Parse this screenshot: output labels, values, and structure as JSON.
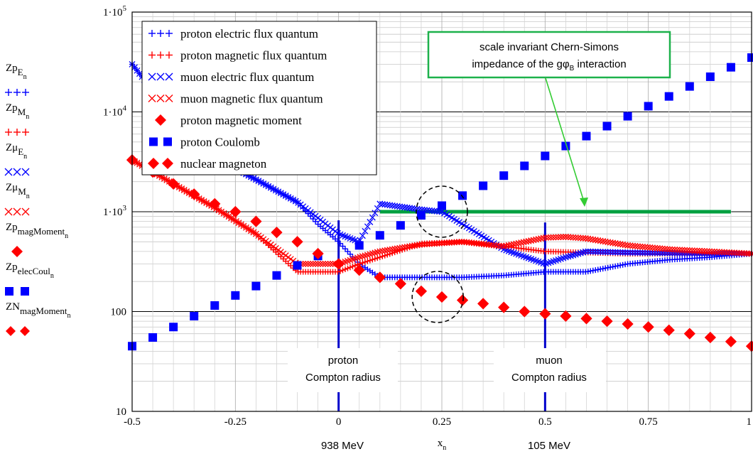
{
  "chart_data": {
    "type": "scatter",
    "x_axis": {
      "range": [
        -0.5,
        1
      ],
      "ticks": [
        {
          "value": -0.5,
          "label": "-0.5"
        },
        {
          "value": -0.25,
          "label": "-0.25"
        },
        {
          "value": 0,
          "label": "0"
        },
        {
          "value": 0.25,
          "label": "0.25"
        },
        {
          "value": 0.5,
          "label": "0.5"
        },
        {
          "value": 0.75,
          "label": "0.75"
        },
        {
          "value": 1,
          "label": "1"
        }
      ],
      "label_main": "x",
      "label_sub": "n"
    },
    "y_axis": {
      "scale": "log",
      "range": [
        10,
        100000
      ],
      "ticks": [
        {
          "value": 10,
          "main": "10",
          "sup": ""
        },
        {
          "value": 100,
          "main": "100",
          "sup": ""
        },
        {
          "value": 1000,
          "main": "1·10",
          "sup": "3"
        },
        {
          "value": 10000,
          "main": "1·10",
          "sup": "4"
        },
        {
          "value": 100000,
          "main": "1·10",
          "sup": "5"
        }
      ]
    },
    "grid": true,
    "legend_position": "top-left",
    "series": [
      {
        "name": "proton electric flux quantum",
        "marker": "+",
        "color": "#0000ff",
        "varname": "Zp",
        "sub": "E",
        "subsub": "n",
        "x": [
          -0.5,
          -0.4,
          -0.3,
          -0.2,
          -0.1,
          -0.05,
          0,
          0.05,
          0.1,
          0.2,
          0.3,
          0.4,
          0.5,
          0.6,
          0.7,
          0.8,
          0.9,
          1.0
        ],
        "y": [
          30000,
          9000,
          3500,
          2100,
          1250,
          750,
          500,
          300,
          220,
          220,
          220,
          230,
          250,
          250,
          300,
          330,
          350,
          380
        ]
      },
      {
        "name": "proton magnetic flux quantum",
        "marker": "+",
        "color": "#ff0000",
        "varname": "Zp",
        "sub": "M",
        "subsub": "n",
        "x": [
          -0.5,
          -0.4,
          -0.3,
          -0.2,
          -0.1,
          0,
          0.05,
          0.1,
          0.2,
          0.3,
          0.4,
          0.5,
          0.6,
          0.7,
          0.8,
          0.9,
          1.0
        ],
        "y": [
          3300,
          1900,
          1100,
          600,
          250,
          250,
          300,
          350,
          480,
          500,
          450,
          400,
          390,
          380,
          380,
          380,
          380
        ]
      },
      {
        "name": "muon electric flux quantum",
        "marker": "x",
        "color": "#0000ff",
        "varname": "Zμ",
        "sub": "E",
        "subsub": "n",
        "x": [
          -0.5,
          -0.4,
          -0.3,
          -0.2,
          -0.1,
          0,
          0.05,
          0.1,
          0.2,
          0.25,
          0.3,
          0.4,
          0.5,
          0.55,
          0.6,
          0.7,
          0.8,
          0.9,
          1.0
        ],
        "y": [
          30000,
          9000,
          3500,
          2100,
          1250,
          600,
          500,
          1200,
          1050,
          1000,
          750,
          420,
          300,
          350,
          400,
          390,
          385,
          380,
          380
        ]
      },
      {
        "name": "muon magnetic flux quantum",
        "marker": "x",
        "color": "#ff0000",
        "varname": "Zμ",
        "sub": "M",
        "subsub": "n",
        "x": [
          -0.5,
          -0.4,
          -0.3,
          -0.2,
          -0.1,
          0,
          0.05,
          0.1,
          0.2,
          0.3,
          0.4,
          0.5,
          0.55,
          0.6,
          0.7,
          0.8,
          0.9,
          1.0
        ],
        "y": [
          3300,
          1900,
          1100,
          600,
          300,
          300,
          350,
          400,
          470,
          500,
          450,
          550,
          560,
          540,
          460,
          420,
          400,
          380
        ]
      },
      {
        "name": "proton magnetic moment",
        "marker": "diamond",
        "color": "#ff0000",
        "varname": "Zp",
        "sub": "magMoment",
        "subsub": "n",
        "x": [
          -0.5,
          -0.45,
          -0.4,
          -0.35,
          -0.3,
          -0.25,
          -0.2,
          -0.15,
          -0.1,
          -0.05,
          0,
          0.05,
          0.1,
          0.15,
          0.2,
          0.25,
          0.3,
          0.35,
          0.4,
          0.45,
          0.5,
          0.55,
          0.6,
          0.65,
          0.7,
          0.75,
          0.8,
          0.85,
          0.9,
          0.95,
          1.0
        ],
        "y": [
          3300,
          2500,
          1900,
          1500,
          1200,
          1000,
          800,
          620,
          500,
          380,
          300,
          260,
          220,
          190,
          160,
          140,
          130,
          120,
          110,
          100,
          95,
          90,
          85,
          80,
          75,
          70,
          65,
          60,
          55,
          50,
          45
        ]
      },
      {
        "name": "proton Coulomb",
        "marker": "square",
        "color": "#0000ff",
        "varname": "Zp",
        "sub": "elecCoul",
        "subsub": "n",
        "x": [
          -0.5,
          -0.45,
          -0.4,
          -0.35,
          -0.3,
          -0.25,
          -0.2,
          -0.15,
          -0.1,
          -0.05,
          0.05,
          0.1,
          0.15,
          0.2,
          0.25,
          0.3,
          0.35,
          0.4,
          0.45,
          0.5,
          0.55,
          0.6,
          0.65,
          0.7,
          0.75,
          0.8,
          0.85,
          0.9,
          0.95,
          1.0
        ],
        "y": [
          45,
          55,
          70,
          90,
          115,
          145,
          180,
          230,
          290,
          360,
          460,
          580,
          730,
          920,
          1150,
          1450,
          1820,
          2300,
          2880,
          3620,
          4550,
          5720,
          7200,
          9050,
          11400,
          14300,
          18000,
          22500,
          28000,
          35000
        ]
      },
      {
        "name": "nuclear magneton",
        "marker": "diamond-pair",
        "color": "#ff0000",
        "varname": "ZN",
        "sub": "magMoment",
        "subsub": "n",
        "x": [
          -0.5,
          -0.45,
          -0.4,
          -0.35,
          -0.3,
          -0.25,
          -0.2,
          -0.15,
          -0.1,
          -0.05,
          0,
          0.05,
          0.1,
          0.15,
          0.2,
          0.25,
          0.3,
          0.35,
          0.4,
          0.45,
          0.5,
          0.55,
          0.6,
          0.65,
          0.7,
          0.75,
          0.8,
          0.85,
          0.9,
          0.95,
          1.0
        ],
        "y": [
          3300,
          2500,
          1900,
          1500,
          1200,
          1000,
          800,
          620,
          500,
          380,
          300,
          260,
          220,
          190,
          160,
          140,
          130,
          120,
          110,
          100,
          95,
          90,
          85,
          80,
          75,
          70,
          65,
          60,
          55,
          50,
          45
        ]
      }
    ],
    "reference_lines": [
      {
        "label": "scale invariant Chern-Simons impedance of the gφB interaction",
        "y": 1000,
        "x_start": 0.1,
        "x_end": 0.95,
        "color": "#00a040"
      },
      {
        "label": "proton Compton radius",
        "x": 0,
        "y_start": 10,
        "y_end": 820,
        "color": "#0000cc"
      },
      {
        "label": "muon Compton radius",
        "x": 0.5,
        "y_start": 10,
        "y_end": 780,
        "color": "#0000cc"
      }
    ],
    "annotations": [
      {
        "text": "scale invariant Chern-Simons",
        "line2": "impedance of the gφ",
        "line2_sub": "B",
        "line2_tail": " interaction"
      },
      {
        "text": "proton",
        "line2": "Compton radius"
      },
      {
        "text": "muon",
        "line2": "Compton radius"
      },
      {
        "text": "938 MeV"
      },
      {
        "text": "105 MeV"
      }
    ],
    "highlight_circles": [
      {
        "x": 0.25,
        "y": 1000
      },
      {
        "x": 0.24,
        "y": 140
      }
    ]
  }
}
